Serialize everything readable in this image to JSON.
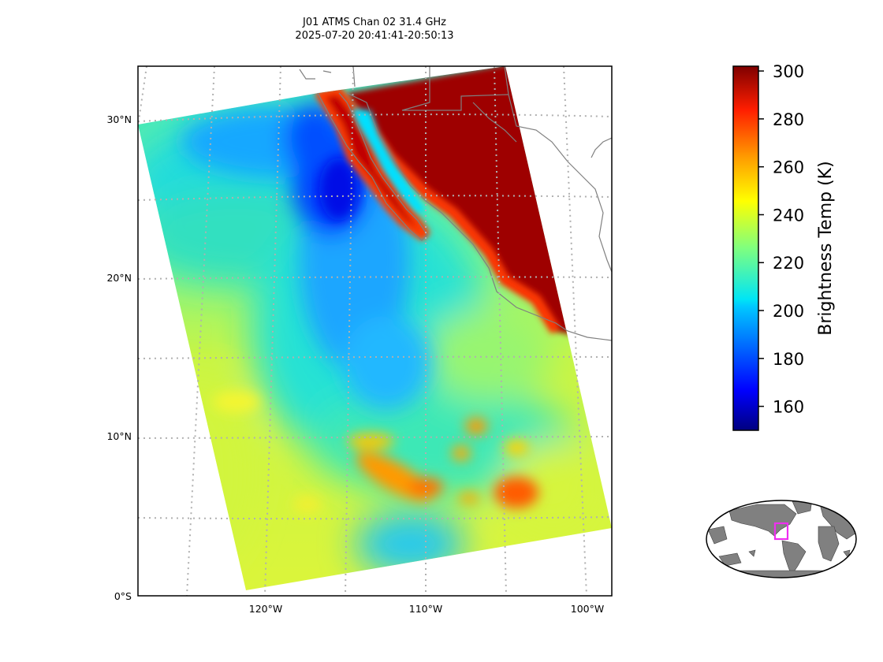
{
  "title": {
    "line1": "J01 ATMS Chan 02 31.4 GHz",
    "line2": "2025-07-20 20:41:41-20:50:13"
  },
  "map": {
    "lon_range": [
      -128,
      -98
    ],
    "lat_range": [
      0,
      33.5
    ],
    "lat_ticks": [
      {
        "value": 30,
        "label": "30°N"
      },
      {
        "value": 20,
        "label": "20°N"
      },
      {
        "value": 10,
        "label": "10°N"
      },
      {
        "value": 0,
        "label": "0°S"
      }
    ],
    "lon_ticks": [
      {
        "value": -120,
        "label": "120°W"
      },
      {
        "value": -110,
        "label": "110°W"
      },
      {
        "value": -100,
        "label": "100°W"
      }
    ],
    "gridlines": "dotted gray",
    "swath_corners_lonlat": [
      [
        -128,
        29.7
      ],
      [
        -116.4,
        31.7
      ],
      [
        -104.7,
        33.5
      ],
      [
        -98,
        4.3
      ],
      [
        -121.1,
        0.4
      ]
    ]
  },
  "colorbar": {
    "label": "Brightness Temp (K)",
    "min": 150,
    "max": 302,
    "ticks": [
      160,
      180,
      200,
      220,
      240,
      260,
      280,
      300
    ],
    "colormap": "jet",
    "colors": [
      "#00007f",
      "#0000ff",
      "#007fff",
      "#00ffff",
      "#7fff7f",
      "#ffff00",
      "#ff7f00",
      "#ff0000",
      "#7f0000"
    ]
  },
  "field_colors": {
    "ocean_warm": "#d8f53a",
    "ocean_mid": "#6ef59a",
    "ocean_cool": "#22e6d2",
    "dry_air": "#14b6ff",
    "very_dry": "#0030ff",
    "rain": "#ff8c00",
    "heavy_rain": "#ff5a00",
    "land": "#9e0000",
    "coast_edge": "#ff2a00",
    "coastline": "#808080"
  },
  "inset": {
    "description_label": "",
    "highlight_color": "#ee2ef0",
    "land_color": "#808080"
  }
}
